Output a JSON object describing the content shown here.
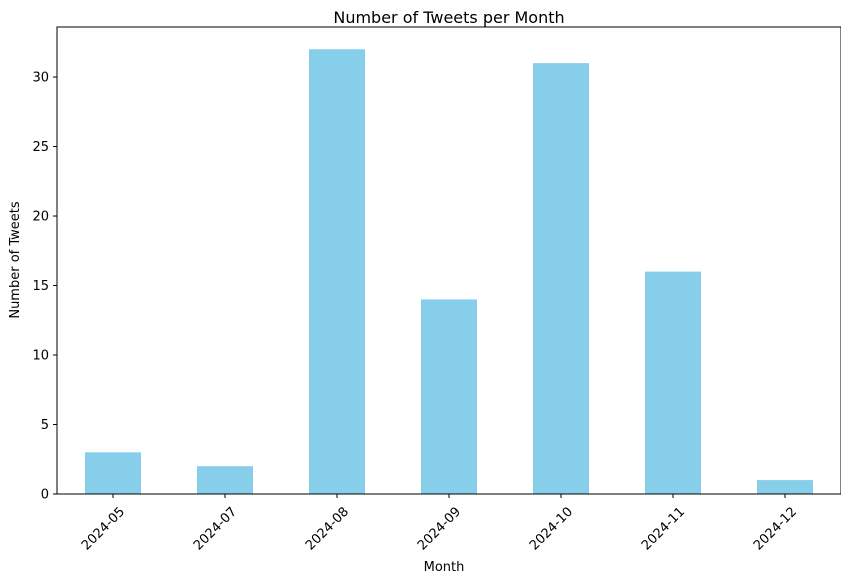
{
  "chart_data": {
    "type": "bar",
    "title": "Number of Tweets per Month",
    "xlabel": "Month",
    "ylabel": "Number of Tweets",
    "categories": [
      "2024-05",
      "2024-07",
      "2024-08",
      "2024-09",
      "2024-10",
      "2024-11",
      "2024-12"
    ],
    "values": [
      3,
      2,
      32,
      14,
      31,
      16,
      1
    ],
    "ylim": [
      0,
      33.6
    ],
    "yticks": [
      0,
      5,
      10,
      15,
      20,
      25,
      30
    ],
    "grid": false,
    "legend": "none",
    "bar_color": "#87ceeb",
    "xtick_rotation_deg": 45
  }
}
